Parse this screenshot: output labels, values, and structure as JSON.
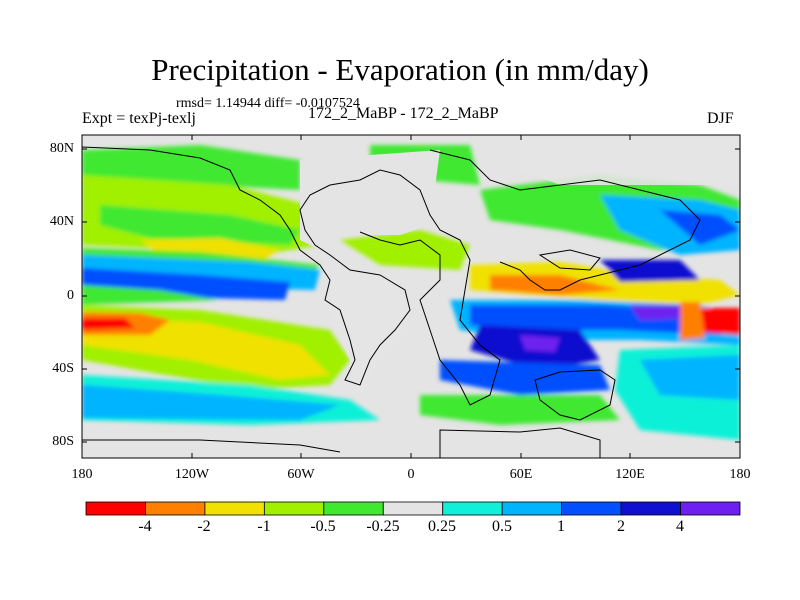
{
  "title": "Precipitation - Evaporation (in mm/day)",
  "stats": "rmsd= 1.14944 diff= -0.0107524",
  "header": {
    "left": "Expt = texPj-texlj",
    "center": "172_2_MaBP - 172_2_MaBP",
    "right": "DJF"
  },
  "map": {
    "lat_labels": [
      "80N",
      "40N",
      "0",
      "40S",
      "80S"
    ],
    "lon_labels": [
      "180",
      "120W",
      "60W",
      "0",
      "60E",
      "120E",
      "180"
    ]
  },
  "colorbar": {
    "labels": [
      "-4",
      "-2",
      "-1",
      "-0.5",
      "-0.25",
      "0.25",
      "0.5",
      "1",
      "2",
      "4"
    ],
    "colors": [
      "#ff0000",
      "#ff8000",
      "#f0e100",
      "#a0f000",
      "#40e830",
      "#e4e4e4",
      "#10f0d8",
      "#00b4ff",
      "#0050ff",
      "#1010d0",
      "#6e20f0"
    ]
  }
}
